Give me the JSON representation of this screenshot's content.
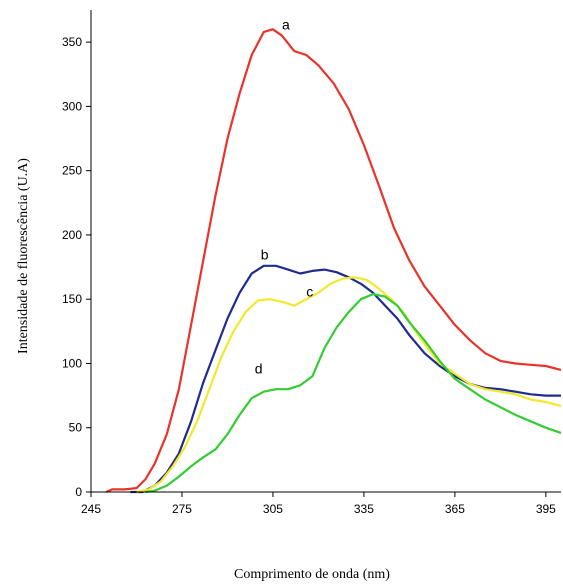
{
  "chart_data": {
    "type": "line",
    "title": "",
    "xlabel": "Comprimento de onda (nm)",
    "ylabel": "Intensidade de fluorescência (U.A)",
    "xlim": [
      245,
      400
    ],
    "ylim": [
      0,
      375
    ],
    "xticks": [
      245,
      275,
      305,
      335,
      365,
      395
    ],
    "yticks": [
      0,
      50,
      100,
      150,
      200,
      250,
      300,
      350
    ],
    "grid": false,
    "legend": "none",
    "series": [
      {
        "name": "a",
        "color": "#e8332b",
        "label_at": [
          308,
          360
        ],
        "points": [
          [
            250,
            0
          ],
          [
            252,
            2
          ],
          [
            256,
            2
          ],
          [
            260,
            3
          ],
          [
            263,
            10
          ],
          [
            266,
            22
          ],
          [
            270,
            45
          ],
          [
            274,
            80
          ],
          [
            278,
            130
          ],
          [
            282,
            180
          ],
          [
            286,
            230
          ],
          [
            290,
            275
          ],
          [
            294,
            310
          ],
          [
            298,
            340
          ],
          [
            302,
            358
          ],
          [
            305,
            360
          ],
          [
            308,
            355
          ],
          [
            312,
            343
          ],
          [
            316,
            340
          ],
          [
            320,
            332
          ],
          [
            325,
            318
          ],
          [
            330,
            298
          ],
          [
            335,
            270
          ],
          [
            340,
            238
          ],
          [
            345,
            205
          ],
          [
            350,
            180
          ],
          [
            355,
            160
          ],
          [
            360,
            145
          ],
          [
            365,
            130
          ],
          [
            370,
            118
          ],
          [
            375,
            108
          ],
          [
            380,
            102
          ],
          [
            385,
            100
          ],
          [
            390,
            99
          ],
          [
            395,
            98
          ],
          [
            400,
            95
          ]
        ]
      },
      {
        "name": "b",
        "color": "#1f2b8e",
        "label_at": [
          301,
          181
        ],
        "points": [
          [
            258,
            0
          ],
          [
            262,
            0
          ],
          [
            266,
            5
          ],
          [
            270,
            15
          ],
          [
            274,
            30
          ],
          [
            278,
            55
          ],
          [
            282,
            85
          ],
          [
            286,
            110
          ],
          [
            290,
            135
          ],
          [
            294,
            155
          ],
          [
            298,
            170
          ],
          [
            302,
            176
          ],
          [
            306,
            176
          ],
          [
            310,
            173
          ],
          [
            314,
            170
          ],
          [
            318,
            172
          ],
          [
            322,
            173
          ],
          [
            326,
            171
          ],
          [
            330,
            167
          ],
          [
            334,
            162
          ],
          [
            338,
            155
          ],
          [
            342,
            145
          ],
          [
            346,
            135
          ],
          [
            350,
            122
          ],
          [
            355,
            108
          ],
          [
            360,
            98
          ],
          [
            365,
            90
          ],
          [
            370,
            84
          ],
          [
            375,
            81
          ],
          [
            380,
            80
          ],
          [
            385,
            78
          ],
          [
            390,
            76
          ],
          [
            395,
            75
          ],
          [
            400,
            75
          ]
        ]
      },
      {
        "name": "c",
        "color": "#f2e82c",
        "label_at": [
          316,
          152
        ],
        "points": [
          [
            260,
            0
          ],
          [
            264,
            2
          ],
          [
            268,
            8
          ],
          [
            272,
            20
          ],
          [
            276,
            35
          ],
          [
            280,
            55
          ],
          [
            284,
            80
          ],
          [
            288,
            105
          ],
          [
            292,
            125
          ],
          [
            296,
            140
          ],
          [
            300,
            149
          ],
          [
            304,
            150
          ],
          [
            308,
            148
          ],
          [
            312,
            145
          ],
          [
            316,
            150
          ],
          [
            320,
            155
          ],
          [
            324,
            162
          ],
          [
            328,
            166
          ],
          [
            332,
            167
          ],
          [
            336,
            165
          ],
          [
            340,
            158
          ],
          [
            344,
            150
          ],
          [
            348,
            140
          ],
          [
            352,
            125
          ],
          [
            356,
            112
          ],
          [
            360,
            100
          ],
          [
            365,
            92
          ],
          [
            370,
            84
          ],
          [
            375,
            80
          ],
          [
            380,
            78
          ],
          [
            385,
            76
          ],
          [
            390,
            72
          ],
          [
            395,
            70
          ],
          [
            400,
            67
          ]
        ]
      },
      {
        "name": "d",
        "color": "#33cc33",
        "label_at": [
          299,
          92
        ],
        "points": [
          [
            263,
            0
          ],
          [
            266,
            1
          ],
          [
            270,
            5
          ],
          [
            274,
            12
          ],
          [
            278,
            20
          ],
          [
            282,
            27
          ],
          [
            286,
            33
          ],
          [
            290,
            45
          ],
          [
            294,
            60
          ],
          [
            298,
            73
          ],
          [
            302,
            78
          ],
          [
            306,
            80
          ],
          [
            310,
            80
          ],
          [
            314,
            83
          ],
          [
            318,
            90
          ],
          [
            322,
            112
          ],
          [
            326,
            128
          ],
          [
            330,
            140
          ],
          [
            334,
            150
          ],
          [
            338,
            154
          ],
          [
            342,
            152
          ],
          [
            346,
            145
          ],
          [
            350,
            132
          ],
          [
            355,
            118
          ],
          [
            360,
            102
          ],
          [
            365,
            88
          ],
          [
            370,
            80
          ],
          [
            375,
            72
          ],
          [
            380,
            66
          ],
          [
            385,
            60
          ],
          [
            390,
            55
          ],
          [
            395,
            50
          ],
          [
            400,
            46
          ]
        ]
      }
    ]
  }
}
